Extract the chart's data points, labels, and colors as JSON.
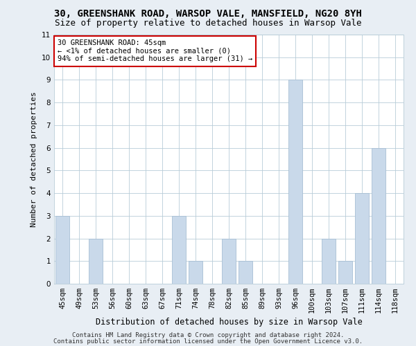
{
  "title": "30, GREENSHANK ROAD, WARSOP VALE, MANSFIELD, NG20 8YH",
  "subtitle": "Size of property relative to detached houses in Warsop Vale",
  "xlabel": "Distribution of detached houses by size in Warsop Vale",
  "ylabel": "Number of detached properties",
  "categories": [
    "45sqm",
    "49sqm",
    "53sqm",
    "56sqm",
    "60sqm",
    "63sqm",
    "67sqm",
    "71sqm",
    "74sqm",
    "78sqm",
    "82sqm",
    "85sqm",
    "89sqm",
    "93sqm",
    "96sqm",
    "100sqm",
    "103sqm",
    "107sqm",
    "111sqm",
    "114sqm",
    "118sqm"
  ],
  "values": [
    3,
    0,
    2,
    0,
    0,
    0,
    0,
    3,
    1,
    0,
    2,
    1,
    0,
    0,
    9,
    0,
    2,
    1,
    4,
    6,
    0
  ],
  "bar_color": "#c9d9ea",
  "bar_edge_color": "#a8bfd4",
  "annotation_text": "30 GREENSHANK ROAD: 45sqm\n← <1% of detached houses are smaller (0)\n94% of semi-detached houses are larger (31) →",
  "annotation_box_color": "white",
  "annotation_box_edge_color": "#cc0000",
  "ylim": [
    0,
    11
  ],
  "yticks": [
    0,
    1,
    2,
    3,
    4,
    5,
    6,
    7,
    8,
    9,
    10,
    11
  ],
  "footer_line1": "Contains HM Land Registry data © Crown copyright and database right 2024.",
  "footer_line2": "Contains public sector information licensed under the Open Government Licence v3.0.",
  "bg_color": "#e8eef4",
  "plot_bg_color": "#ffffff",
  "grid_color": "#b8ccd8",
  "title_fontsize": 10,
  "subtitle_fontsize": 9,
  "xlabel_fontsize": 8.5,
  "ylabel_fontsize": 8,
  "tick_fontsize": 7.5,
  "annotation_fontsize": 7.5,
  "footer_fontsize": 6.5
}
